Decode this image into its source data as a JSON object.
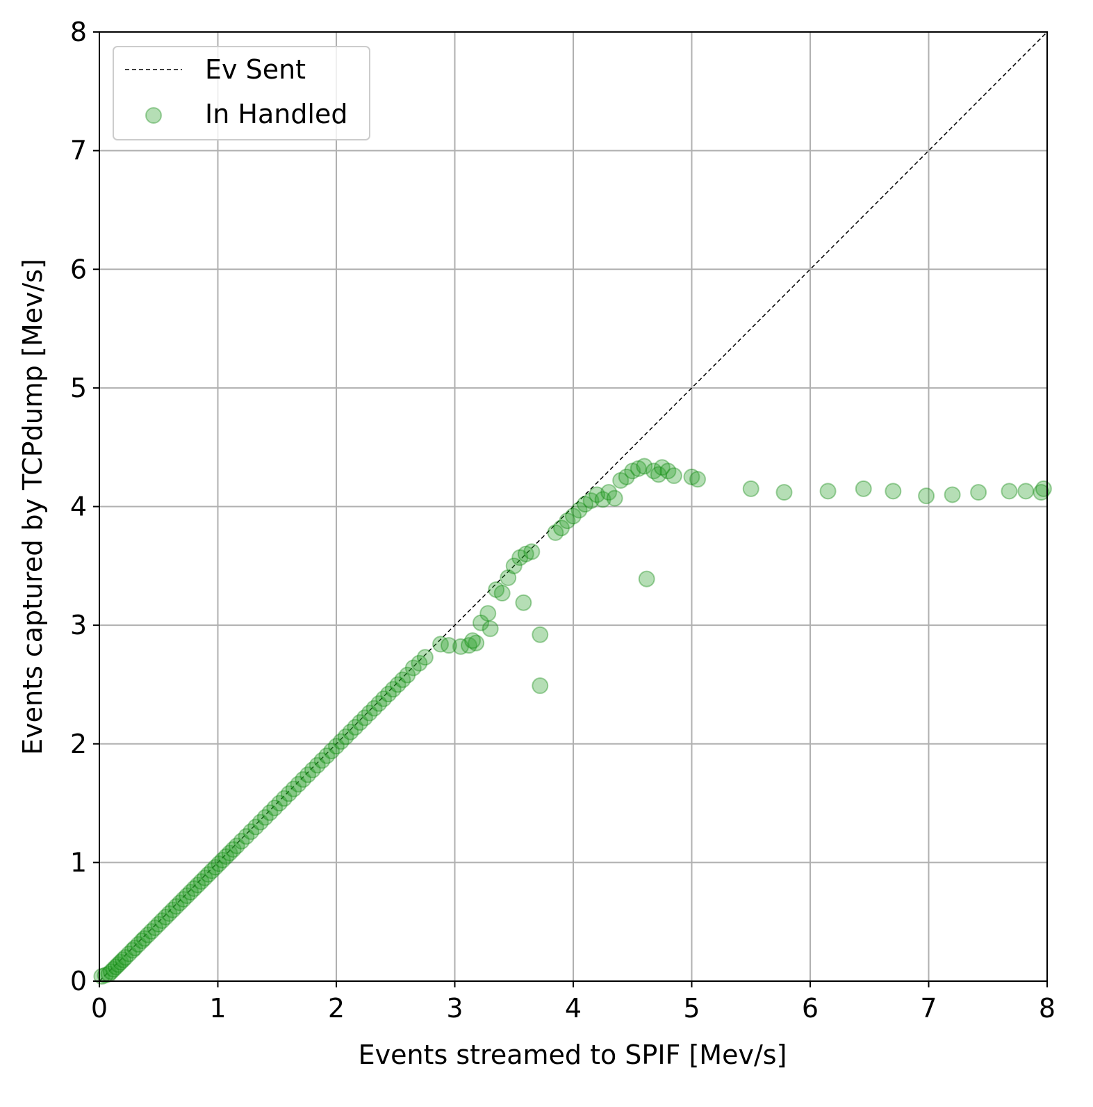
{
  "colors": {
    "scatter_fill": "#2ca02c",
    "scatter_core": "#008000",
    "grid": "#b0b0b0",
    "reference_line": "#000000"
  },
  "chart_data": {
    "type": "scatter",
    "title": "",
    "xlabel": "Events streamed to SPIF [Mev/s]",
    "ylabel": "Events captured by TCPdump [Mev/s]",
    "xlim": [
      0,
      8
    ],
    "ylim": [
      0,
      8
    ],
    "xticks": [
      "0",
      "1",
      "2",
      "3",
      "4",
      "5",
      "6",
      "7",
      "8"
    ],
    "yticks": [
      "0",
      "1",
      "2",
      "3",
      "4",
      "5",
      "6",
      "7",
      "8"
    ],
    "grid": true,
    "legend_position": "top-left",
    "series": [
      {
        "name": "Ev Sent",
        "kind": "line",
        "style": "dashed",
        "x": [
          0,
          8
        ],
        "y": [
          0,
          8
        ]
      },
      {
        "name": "In Handled",
        "kind": "scatter",
        "points": [
          [
            0.02,
            0.04
          ],
          [
            0.05,
            0.05
          ],
          [
            0.08,
            0.06
          ],
          [
            0.1,
            0.08
          ],
          [
            0.12,
            0.1
          ],
          [
            0.14,
            0.12
          ],
          [
            0.16,
            0.14
          ],
          [
            0.18,
            0.16
          ],
          [
            0.2,
            0.18
          ],
          [
            0.22,
            0.2
          ],
          [
            0.25,
            0.23
          ],
          [
            0.28,
            0.26
          ],
          [
            0.3,
            0.28
          ],
          [
            0.33,
            0.31
          ],
          [
            0.36,
            0.34
          ],
          [
            0.38,
            0.36
          ],
          [
            0.41,
            0.39
          ],
          [
            0.44,
            0.42
          ],
          [
            0.47,
            0.45
          ],
          [
            0.5,
            0.48
          ],
          [
            0.53,
            0.51
          ],
          [
            0.56,
            0.54
          ],
          [
            0.59,
            0.57
          ],
          [
            0.62,
            0.6
          ],
          [
            0.65,
            0.63
          ],
          [
            0.68,
            0.66
          ],
          [
            0.71,
            0.69
          ],
          [
            0.74,
            0.72
          ],
          [
            0.77,
            0.75
          ],
          [
            0.8,
            0.78
          ],
          [
            0.83,
            0.81
          ],
          [
            0.86,
            0.84
          ],
          [
            0.89,
            0.87
          ],
          [
            0.92,
            0.9
          ],
          [
            0.95,
            0.93
          ],
          [
            0.98,
            0.96
          ],
          [
            1.01,
            0.99
          ],
          [
            1.04,
            1.02
          ],
          [
            1.07,
            1.05
          ],
          [
            1.1,
            1.08
          ],
          [
            1.13,
            1.11
          ],
          [
            1.16,
            1.14
          ],
          [
            1.2,
            1.18
          ],
          [
            1.24,
            1.22
          ],
          [
            1.28,
            1.26
          ],
          [
            1.32,
            1.3
          ],
          [
            1.36,
            1.34
          ],
          [
            1.4,
            1.38
          ],
          [
            1.44,
            1.42
          ],
          [
            1.48,
            1.46
          ],
          [
            1.52,
            1.5
          ],
          [
            1.56,
            1.54
          ],
          [
            1.6,
            1.58
          ],
          [
            1.64,
            1.62
          ],
          [
            1.68,
            1.66
          ],
          [
            1.72,
            1.7
          ],
          [
            1.76,
            1.74
          ],
          [
            1.8,
            1.78
          ],
          [
            1.84,
            1.82
          ],
          [
            1.88,
            1.86
          ],
          [
            1.92,
            1.9
          ],
          [
            1.96,
            1.94
          ],
          [
            2.0,
            1.98
          ],
          [
            2.04,
            2.02
          ],
          [
            2.08,
            2.06
          ],
          [
            2.12,
            2.1
          ],
          [
            2.16,
            2.14
          ],
          [
            2.2,
            2.18
          ],
          [
            2.24,
            2.22
          ],
          [
            2.28,
            2.26
          ],
          [
            2.32,
            2.3
          ],
          [
            2.36,
            2.34
          ],
          [
            2.4,
            2.38
          ],
          [
            2.44,
            2.42
          ],
          [
            2.48,
            2.46
          ],
          [
            2.52,
            2.5
          ],
          [
            2.56,
            2.54
          ],
          [
            2.6,
            2.58
          ],
          [
            2.65,
            2.64
          ],
          [
            2.7,
            2.68
          ],
          [
            2.75,
            2.73
          ],
          [
            2.88,
            2.84
          ],
          [
            2.95,
            2.83
          ],
          [
            3.05,
            2.82
          ],
          [
            3.12,
            2.83
          ],
          [
            3.18,
            2.85
          ],
          [
            3.15,
            2.87
          ],
          [
            3.22,
            3.02
          ],
          [
            3.28,
            3.1
          ],
          [
            3.3,
            2.97
          ],
          [
            3.35,
            3.3
          ],
          [
            3.4,
            3.27
          ],
          [
            3.45,
            3.4
          ],
          [
            3.5,
            3.5
          ],
          [
            3.55,
            3.57
          ],
          [
            3.6,
            3.6
          ],
          [
            3.65,
            3.62
          ],
          [
            3.58,
            3.19
          ],
          [
            3.72,
            2.92
          ],
          [
            3.72,
            2.49
          ],
          [
            3.85,
            3.78
          ],
          [
            3.9,
            3.82
          ],
          [
            3.95,
            3.88
          ],
          [
            4.0,
            3.92
          ],
          [
            4.05,
            3.97
          ],
          [
            4.1,
            4.02
          ],
          [
            4.15,
            4.05
          ],
          [
            4.2,
            4.1
          ],
          [
            4.25,
            4.06
          ],
          [
            4.3,
            4.12
          ],
          [
            4.35,
            4.07
          ],
          [
            4.4,
            4.22
          ],
          [
            4.45,
            4.25
          ],
          [
            4.5,
            4.3
          ],
          [
            4.55,
            4.32
          ],
          [
            4.6,
            4.34
          ],
          [
            4.62,
            3.39
          ],
          [
            4.68,
            4.3
          ],
          [
            4.72,
            4.27
          ],
          [
            4.75,
            4.33
          ],
          [
            4.8,
            4.3
          ],
          [
            4.85,
            4.26
          ],
          [
            5.0,
            4.25
          ],
          [
            5.05,
            4.23
          ],
          [
            5.5,
            4.15
          ],
          [
            5.78,
            4.12
          ],
          [
            6.15,
            4.13
          ],
          [
            6.45,
            4.15
          ],
          [
            6.7,
            4.13
          ],
          [
            6.98,
            4.09
          ],
          [
            7.2,
            4.1
          ],
          [
            7.42,
            4.12
          ],
          [
            7.68,
            4.13
          ],
          [
            7.82,
            4.13
          ],
          [
            7.95,
            4.12
          ],
          [
            7.97,
            4.15
          ]
        ]
      }
    ]
  }
}
